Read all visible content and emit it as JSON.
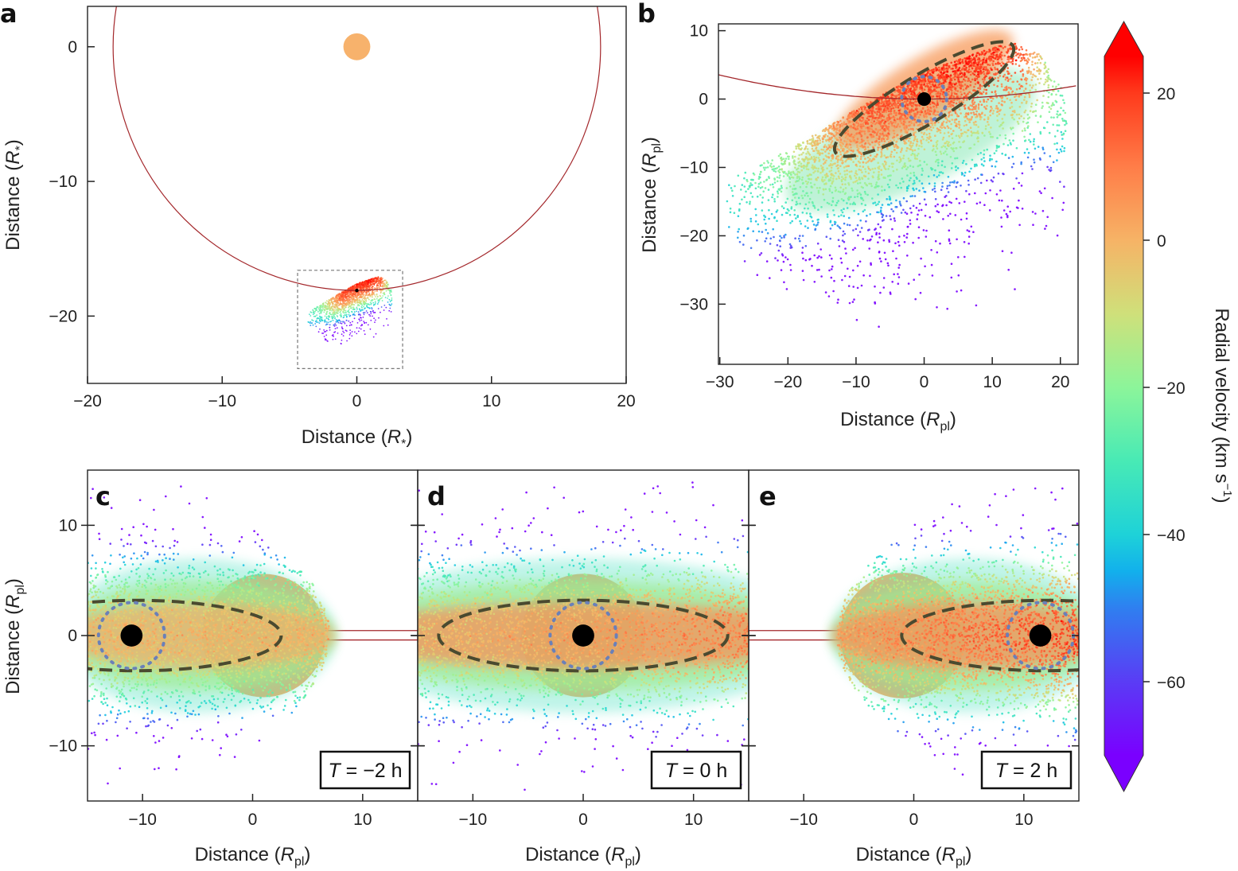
{
  "colorbar": {
    "label": {
      "text": "Radial velocity  (km s",
      "sup": "−1",
      "close": ")"
    },
    "ticks": [
      "20",
      "0",
      "−20",
      "−40",
      "−60"
    ],
    "range": [
      -70,
      25
    ],
    "extend": "both",
    "colormap": [
      {
        "v": -70,
        "color": "#7a00ff"
      },
      {
        "v": -60,
        "color": "#5a3cf5"
      },
      {
        "v": -50,
        "color": "#2f7ff0"
      },
      {
        "v": -45,
        "color": "#12b0ec"
      },
      {
        "v": -40,
        "color": "#1ed2d8"
      },
      {
        "v": -30,
        "color": "#48eab5"
      },
      {
        "v": -20,
        "color": "#8cf59a"
      },
      {
        "v": -10,
        "color": "#cfe07a"
      },
      {
        "v": 0,
        "color": "#f6b366"
      },
      {
        "v": 10,
        "color": "#ff7d48"
      },
      {
        "v": 20,
        "color": "#ff3a1c"
      },
      {
        "v": 25,
        "color": "#ff0000"
      }
    ]
  },
  "colors": {
    "star": "#f7b26c",
    "orbit": "#a3262a",
    "planet": "#000000",
    "ellipse": "#4a4a30",
    "roche": "#6a80b8"
  },
  "chart_data": [
    {
      "panel": "a",
      "type": "scatter",
      "xlim": [
        -20,
        20
      ],
      "ylim": [
        -25,
        3
      ],
      "xticks": [
        "−20",
        "−10",
        "0",
        "10",
        "20"
      ],
      "yticks": [
        "0",
        "−10",
        "−20"
      ],
      "xlabel": {
        "text": "Distance (",
        "var": "R",
        "sub": "*",
        "close": ")"
      },
      "ylabel": {
        "text": "Distance (",
        "var": "R",
        "sub": "*",
        "close": ")"
      },
      "star": {
        "x": 0,
        "y": 0,
        "r": 1
      },
      "orbit": {
        "cx": 0,
        "cy": 0,
        "r": 18.1
      },
      "planet": {
        "x": 0,
        "y": -18.1
      },
      "zoom_box": {
        "x": [
          -4.4,
          3.4
        ],
        "y": [
          -23.9,
          -16.6
        ]
      },
      "color": "radial velocity"
    },
    {
      "panel": "b",
      "type": "scatter",
      "xlim": [
        -30.2,
        22.6
      ],
      "ylim": [
        -38.8,
        11
      ],
      "xticks": [
        "−30",
        "−20",
        "−10",
        "0",
        "10",
        "20"
      ],
      "yticks": [
        "10",
        "0",
        "−10",
        "−20",
        "−30"
      ],
      "xlabel": {
        "text": "Distance (",
        "var": "R",
        "sub": "pl",
        "close": ")"
      },
      "ylabel": {
        "text": "Distance (",
        "var": "R",
        "sub": "pl",
        "close": ")"
      },
      "planet": {
        "x": 0,
        "y": 0,
        "r": 1
      },
      "roche_circle": {
        "r": 3.3
      },
      "ellipse": {
        "cx": 0,
        "cy": 0,
        "a": 15.2,
        "b": 3.6,
        "angle_deg": 31
      },
      "color": "radial velocity"
    },
    {
      "panel": "c",
      "type": "scatter",
      "xlim": [
        -15,
        15
      ],
      "ylim": [
        -15,
        15
      ],
      "xticks": [
        "−10",
        "0",
        "10"
      ],
      "yticks": [
        "10",
        "0",
        "−10"
      ],
      "xlabel": {
        "text": "Distance (",
        "var": "R",
        "sub": "pl",
        "close": ")"
      },
      "ylabel": {
        "text": "Distance (",
        "var": "R",
        "sub": "pl",
        "close": ")"
      },
      "star": {
        "x": 1,
        "y": 0,
        "r": 5.6
      },
      "planet": {
        "x": -11,
        "y": 0,
        "r": 1
      },
      "roche_circle": {
        "r": 3
      },
      "ellipse": {
        "cx": -10.5,
        "cy": 0,
        "a": 13.1,
        "b": 3.2,
        "angle_deg": 0
      },
      "time": {
        "var": "T",
        "text": " = −2 h"
      }
    },
    {
      "panel": "d",
      "type": "scatter",
      "xlim": [
        -15,
        15
      ],
      "ylim": [
        -15,
        15
      ],
      "xticks": [
        "−10",
        "0",
        "10"
      ],
      "yticks": [],
      "xlabel": {
        "text": "Distance (",
        "var": "R",
        "sub": "pl",
        "close": ")"
      },
      "star": {
        "x": 0,
        "y": 0,
        "r": 5.6
      },
      "planet": {
        "x": 0,
        "y": 0,
        "r": 1
      },
      "roche_circle": {
        "r": 3
      },
      "ellipse": {
        "cx": 0,
        "cy": 0,
        "a": 13.1,
        "b": 3.2,
        "angle_deg": 0
      },
      "time": {
        "var": "T",
        "text": " = 0 h"
      }
    },
    {
      "panel": "e",
      "type": "scatter",
      "xlim": [
        -15,
        15
      ],
      "ylim": [
        -15,
        15
      ],
      "xticks": [
        "−10",
        "0",
        "10"
      ],
      "yticks": [],
      "xlabel": {
        "text": "Distance (",
        "var": "R",
        "sub": "pl",
        "close": ")"
      },
      "star": {
        "x": -1,
        "y": 0,
        "r": 5.7
      },
      "planet": {
        "x": 11.5,
        "y": 0,
        "r": 1
      },
      "roche_circle": {
        "r": 3
      },
      "ellipse": {
        "cx": 12,
        "cy": 0,
        "a": 13.1,
        "b": 3.2,
        "angle_deg": 0
      },
      "time": {
        "var": "T",
        "text": " = 2 h"
      }
    }
  ]
}
